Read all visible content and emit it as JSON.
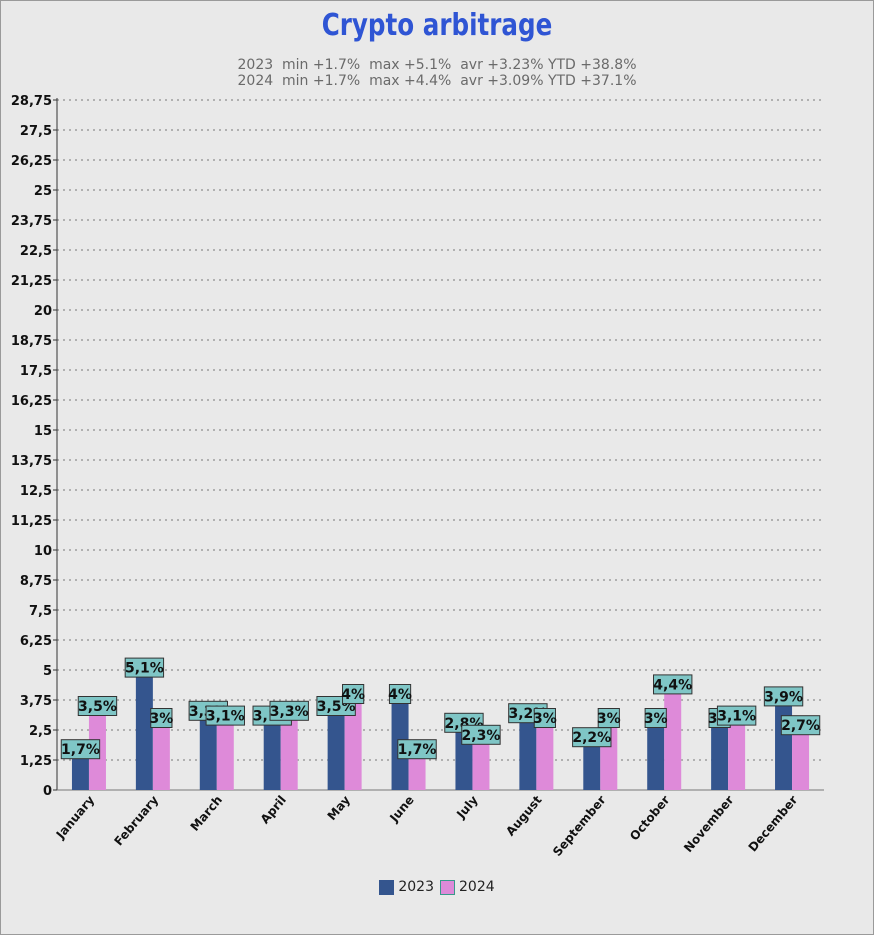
{
  "chart_data": {
    "type": "bar",
    "title": "Crypto arbitrage",
    "subtitles": [
      "2023  min +1.7%  max +5.1%  avr +3.23% YTD +38.8%",
      "2024  min +1.7%  max +4.4%  avr +3.09% YTD +37.1%"
    ],
    "categories": [
      "January",
      "February",
      "March",
      "April",
      "May",
      "June",
      "July",
      "August",
      "September",
      "October",
      "November",
      "December"
    ],
    "series": [
      {
        "name": "2023",
        "color": "#34558e",
        "values": [
          1.7,
          5.1,
          3.3,
          3.1,
          3.5,
          4.0,
          2.8,
          3.2,
          2.2,
          3.0,
          3.0,
          3.9
        ],
        "labels": [
          "1,7%",
          "5,1%",
          "3,3%",
          "3,1%",
          "3,5%",
          "4%",
          "2,8%",
          "3,2%",
          "2,2%",
          "3%",
          "3%",
          "3,9%"
        ]
      },
      {
        "name": "2024",
        "color": "#de8ad9",
        "values": [
          3.5,
          3.0,
          3.1,
          3.3,
          4.0,
          1.7,
          2.3,
          3.0,
          3.0,
          4.4,
          3.1,
          2.7
        ],
        "labels": [
          "3,5%",
          "3%",
          "3,1%",
          "3,3%",
          "4%",
          "1,7%",
          "2,3%",
          "3%",
          "3%",
          "4,4%",
          "3,1%",
          "2,7%"
        ]
      }
    ],
    "yticks": [
      "0",
      "1,25",
      "2,5",
      "3,75",
      "5",
      "6,25",
      "7,5",
      "8,75",
      "10",
      "11,25",
      "12,5",
      "13,75",
      "15",
      "16,25",
      "17,5",
      "18,75",
      "20",
      "21,25",
      "22,5",
      "23,75",
      "25",
      "26,25",
      "27,5",
      "28,75"
    ],
    "ylim": [
      0,
      28.75
    ],
    "ystep": 1.25,
    "grid": true,
    "legend_position": "bottom",
    "label_bg": "#7fc6c6"
  }
}
